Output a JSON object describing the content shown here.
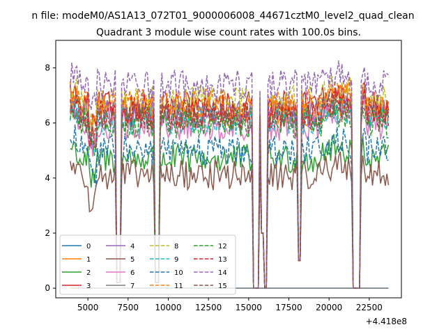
{
  "figure": {
    "suptitle": "n file: modeM0/AS1A13_072T01_9000006008_44671cztM0_level2_quad_clean",
    "title": "Quadrant 3 module wise count rates with 100.0s bins.",
    "offset_label": "+4.418e8"
  },
  "chart_data": {
    "type": "line",
    "title": "Quadrant 3 module wise count rates with 100.0s bins.",
    "xlabel": "",
    "ylabel": "",
    "x_offset": 441800000,
    "xlim": [
      3000,
      24500
    ],
    "ylim": [
      -0.35,
      9.0
    ],
    "xticks": [
      5000,
      7500,
      10000,
      12500,
      15000,
      17500,
      20000,
      22500
    ],
    "xtick_labels": [
      "5000",
      "7500",
      "10000",
      "12500",
      "15000",
      "17500",
      "20000",
      "22500"
    ],
    "yticks": [
      0,
      2,
      4,
      6,
      8
    ],
    "ytick_labels": [
      "0",
      "2",
      "4",
      "6",
      "8"
    ],
    "grid": false,
    "legend": "lower-left, 4 columns",
    "x_sampling": {
      "start": 3900,
      "end": 23700,
      "step": 100
    },
    "gaps": [
      {
        "from": 6800,
        "to": 7000,
        "value": 0.2
      },
      {
        "from": 9200,
        "to": 9400,
        "value": 0.2
      },
      {
        "from": 15300,
        "to": 15600,
        "value": 0.0
      },
      {
        "from": 15800,
        "to": 15900,
        "value": 2.0
      },
      {
        "from": 16000,
        "to": 16100,
        "value": 0.0
      },
      {
        "from": 18100,
        "to": 18200,
        "value": 1.0
      },
      {
        "from": 21500,
        "to": 21900,
        "value": 0.0
      }
    ],
    "series": [
      {
        "name": "0",
        "color": "#1f77b4",
        "dash": "solid",
        "level": 0.0,
        "zero": true
      },
      {
        "name": "1",
        "color": "#ff7f0e",
        "dash": "solid",
        "level": 6.4
      },
      {
        "name": "2",
        "color": "#2ca02c",
        "dash": "solid",
        "level": 4.7
      },
      {
        "name": "3",
        "color": "#d62728",
        "dash": "solid",
        "level": 6.6
      },
      {
        "name": "4",
        "color": "#9467bd",
        "dash": "solid",
        "level": 6.3
      },
      {
        "name": "5",
        "color": "#8c564b",
        "dash": "solid",
        "level": 4.1
      },
      {
        "name": "6",
        "color": "#e377c2",
        "dash": "solid",
        "level": 5.9
      },
      {
        "name": "7",
        "color": "#7f7f7f",
        "dash": "solid",
        "level": 0.0,
        "zero": true
      },
      {
        "name": "8",
        "color": "#bcbd22",
        "dash": "dashed",
        "level": 6.8
      },
      {
        "name": "9",
        "color": "#17becf",
        "dash": "dashed",
        "level": 6.1
      },
      {
        "name": "10",
        "color": "#1f77b4",
        "dash": "dashed",
        "level": 5.0
      },
      {
        "name": "11",
        "color": "#ff7f0e",
        "dash": "dashed",
        "level": 6.7
      },
      {
        "name": "12",
        "color": "#2ca02c",
        "dash": "dashed",
        "level": 6.0
      },
      {
        "name": "13",
        "color": "#d62728",
        "dash": "dashed",
        "level": 6.3
      },
      {
        "name": "14",
        "color": "#9467bd",
        "dash": "dashed",
        "level": 7.4
      },
      {
        "name": "15",
        "color": "#8c564b",
        "dash": "dashed",
        "level": 6.2
      }
    ]
  }
}
